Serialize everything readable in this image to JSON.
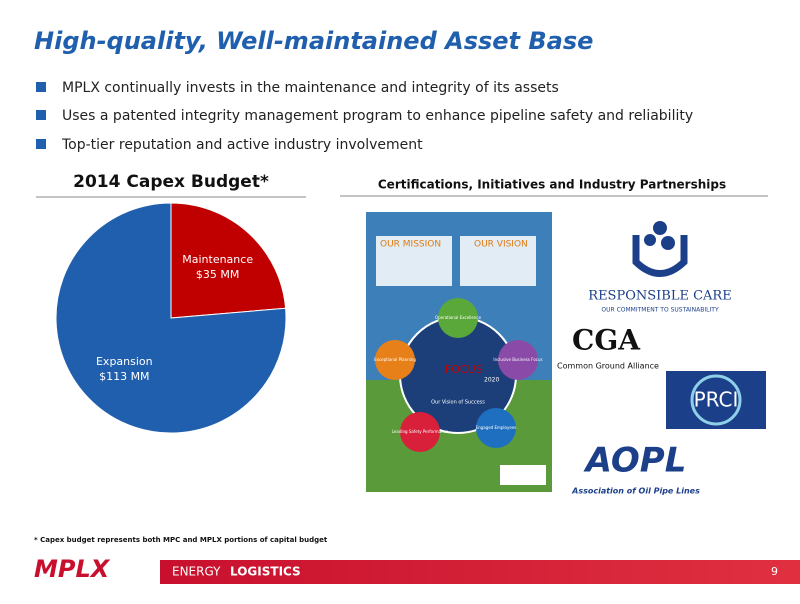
{
  "header": {
    "title": "High-quality, Well-maintained Asset Base"
  },
  "bullets": [
    "MPLX continually invests in the maintenance and integrity of its assets",
    "Uses a patented integrity management program to enhance pipeline safety and reliability",
    "Top-tier reputation and active industry involvement"
  ],
  "chart_data": {
    "type": "pie",
    "title": "2014 Capex Budget*",
    "categories": [
      "Maintenance",
      "Expansion"
    ],
    "values": [
      35,
      113
    ],
    "value_labels": [
      "$35 MM",
      "$113 MM"
    ],
    "colors": [
      "#c00000",
      "#1f5fad"
    ]
  },
  "partners": {
    "title": "Certifications, Initiatives and Industry Partnerships",
    "poster": {
      "mission": "OUR MISSION",
      "vision": "OUR VISION",
      "focus": "FOCUS",
      "year": "2020",
      "center": "Our Vision of Success",
      "circles": [
        "Operational Excellence",
        "Inclusive Business Focus",
        "Engaged Employees",
        "Leading Safety Performance",
        "Exceptional Planning"
      ]
    },
    "logos": {
      "rc": "RESPONSIBLE CARE",
      "rc_sub": "OUR COMMITMENT TO SUSTAINABILITY",
      "cga": "CGA",
      "cga_sub": "Common Ground Alliance",
      "prci": "PRCI",
      "aopl": "AOPL",
      "aopl_sub": "Association of Oil Pipe Lines"
    }
  },
  "footnote": "* Capex budget represents both MPC and MPLX portions of capital budget",
  "footer": {
    "logo": "MPLX",
    "energy": "ENERGY",
    "logistics": "LOGISTICS",
    "page": "9"
  }
}
